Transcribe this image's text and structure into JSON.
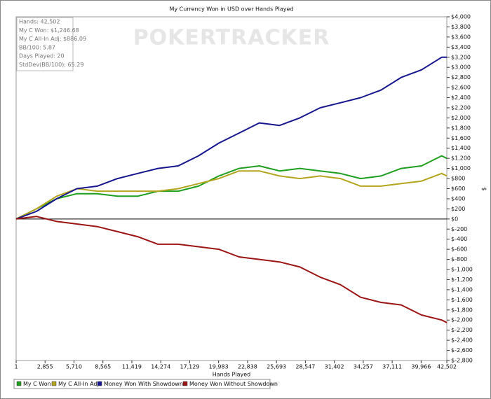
{
  "chart_data": {
    "type": "line",
    "title": "My Currency Won in USD over Hands Played",
    "x_label": "Hands Played",
    "y_label": "$",
    "watermark": "POKERTRACKER",
    "stats": [
      "Hands: 42,502",
      "My C Won: $1,246.68",
      "My C All-In Adj: $886.09",
      "BB/100: 5.87",
      "Days Played: 20",
      "StdDev(BB/100): 65.29"
    ],
    "x": [
      1,
      2000,
      4000,
      6000,
      8000,
      10000,
      12000,
      14000,
      16000,
      18000,
      20000,
      22000,
      24000,
      26000,
      28000,
      30000,
      32000,
      34000,
      36000,
      38000,
      40000,
      42000,
      42502
    ],
    "series": [
      {
        "name": "My C Won",
        "color": "#1f9f1f",
        "values": [
          0,
          200,
          400,
          500,
          500,
          450,
          450,
          550,
          550,
          650,
          850,
          1000,
          1050,
          950,
          1000,
          950,
          900,
          800,
          850,
          1000,
          1050,
          1250,
          1200
        ]
      },
      {
        "name": "My C All-In Adj",
        "color": "#b3a51e",
        "values": [
          0,
          200,
          450,
          600,
          550,
          550,
          550,
          550,
          600,
          700,
          800,
          950,
          950,
          850,
          800,
          850,
          800,
          650,
          650,
          700,
          750,
          900,
          850
        ]
      },
      {
        "name": "Money Won With Showdown",
        "color": "#16168f",
        "values": [
          0,
          150,
          400,
          600,
          650,
          800,
          900,
          1000,
          1050,
          1250,
          1500,
          1700,
          1900,
          1850,
          2000,
          2200,
          2300,
          2400,
          2550,
          2800,
          2950,
          3200,
          3200
        ]
      },
      {
        "name": "Money Won Without Showdown",
        "color": "#9c1414",
        "values": [
          0,
          50,
          -50,
          -100,
          -150,
          -250,
          -350,
          -500,
          -500,
          -550,
          -600,
          -750,
          -800,
          -850,
          -950,
          -1150,
          -1300,
          -1550,
          -1650,
          -1700,
          -1900,
          -2000,
          -2050
        ]
      }
    ],
    "xlim": [
      1,
      42502
    ],
    "xticks": [
      1,
      {
        "value": 2855,
        "label": "2,855"
      },
      {
        "value": 5710,
        "label": "5,710"
      },
      {
        "value": 8565,
        "label": "8,565"
      },
      {
        "value": 11419,
        "label": "11,419"
      },
      {
        "value": 14274,
        "label": "14,274"
      },
      {
        "value": 17129,
        "label": "17,129"
      },
      {
        "value": 19983,
        "label": "19,983"
      },
      {
        "value": 22838,
        "label": "22,838"
      },
      {
        "value": 25693,
        "label": "25,693"
      },
      {
        "value": 28547,
        "label": "28,547"
      },
      {
        "value": 31402,
        "label": "31,402"
      },
      {
        "value": 34257,
        "label": "34,257"
      },
      {
        "value": 37111,
        "label": "37,111"
      },
      {
        "value": 39966,
        "label": "39,966"
      },
      {
        "value": 42502,
        "label": "42,502"
      }
    ],
    "ylim": [
      -2800,
      4000
    ],
    "yticks": [
      {
        "value": 4000,
        "label": "$4,000"
      },
      {
        "value": 3800,
        "label": "$3,800"
      },
      {
        "value": 3600,
        "label": "$3,600"
      },
      {
        "value": 3400,
        "label": "$3,400"
      },
      {
        "value": 3200,
        "label": "$3,200"
      },
      {
        "value": 3000,
        "label": "$3,000"
      },
      {
        "value": 2800,
        "label": "$2,800"
      },
      {
        "value": 2600,
        "label": "$2,600"
      },
      {
        "value": 2400,
        "label": "$2,400"
      },
      {
        "value": 2200,
        "label": "$2,200"
      },
      {
        "value": 2000,
        "label": "$2,000"
      },
      {
        "value": 1800,
        "label": "$1,800"
      },
      {
        "value": 1600,
        "label": "$1,600"
      },
      {
        "value": 1400,
        "label": "$1,400"
      },
      {
        "value": 1200,
        "label": "$1,200"
      },
      {
        "value": 1000,
        "label": "$1,000"
      },
      {
        "value": 800,
        "label": "$800"
      },
      {
        "value": 600,
        "label": "$600"
      },
      {
        "value": 400,
        "label": "$400"
      },
      {
        "value": 200,
        "label": "$200"
      },
      {
        "value": 0,
        "label": "$0"
      },
      {
        "value": -200,
        "label": "$-200"
      },
      {
        "value": -400,
        "label": "$-400"
      },
      {
        "value": -600,
        "label": "$-600"
      },
      {
        "value": -800,
        "label": "$-800"
      },
      {
        "value": -1000,
        "label": "$-1,000"
      },
      {
        "value": -1200,
        "label": "$-1,200"
      },
      {
        "value": -1400,
        "label": "$-1,400"
      },
      {
        "value": -1600,
        "label": "$-1,600"
      },
      {
        "value": -1800,
        "label": "$-1,800"
      },
      {
        "value": -2000,
        "label": "$-2,000"
      },
      {
        "value": -2200,
        "label": "$-2,200"
      },
      {
        "value": -2400,
        "label": "$-2,400"
      },
      {
        "value": -2600,
        "label": "$-2,600"
      },
      {
        "value": -2800,
        "label": "$-2,800"
      }
    ],
    "grid": false
  }
}
